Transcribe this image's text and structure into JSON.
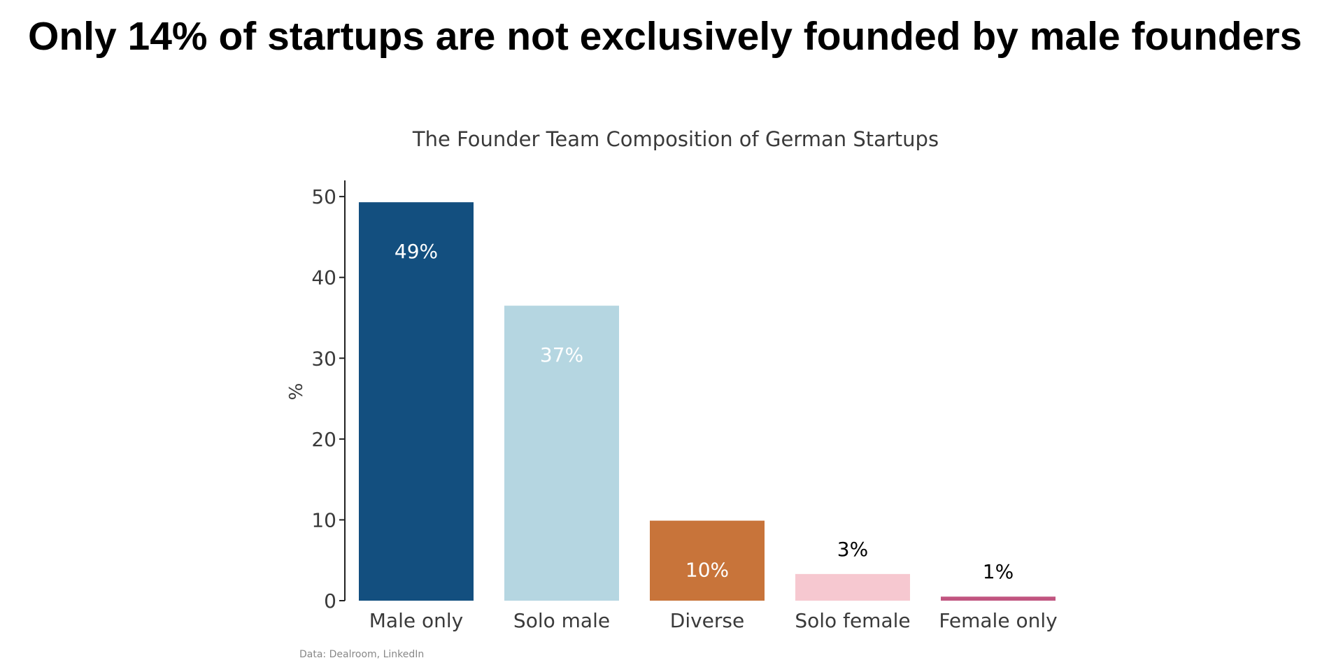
{
  "headline": "Only 14% of startups are not exclusively founded by male founders",
  "source": "Data: Dealroom, LinkedIn",
  "chart_data": {
    "type": "bar",
    "title": "The Founder Team Composition of German Startups",
    "xlabel": "",
    "ylabel": "%",
    "ylim": [
      0,
      52
    ],
    "yticks": [
      0,
      10,
      20,
      30,
      40,
      50
    ],
    "categories": [
      "Male only",
      "Solo male",
      "Diverse",
      "Solo female",
      "Female only"
    ],
    "values": [
      49.3,
      36.5,
      9.9,
      3.3,
      0.5
    ],
    "data_labels": [
      "49%",
      "37%",
      "10%",
      "3%",
      "1%"
    ],
    "colors": [
      "#134f7f",
      "#b5d6e1",
      "#c8743a",
      "#f6c8d0",
      "#c15580"
    ],
    "label_colors": [
      "#ffffff",
      "#ffffff",
      "#ffffff",
      "#000000",
      "#000000"
    ],
    "grid": false,
    "legend": "none"
  }
}
